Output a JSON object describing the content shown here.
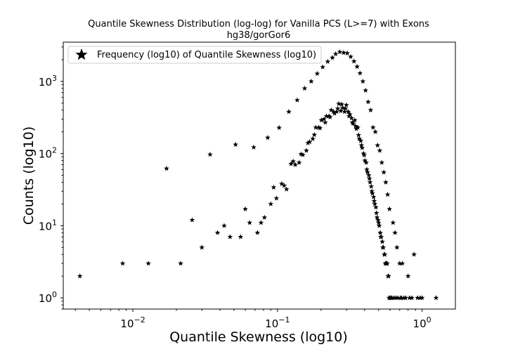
{
  "chart_data": {
    "type": "scatter",
    "title": "Quantile Skewness Distribution (log-log) for Vanilla PCS (L>=7) with Exons",
    "subtitle": "hg38/gorGor6",
    "xlabel": "Quantile Skewness (log10)",
    "ylabel": "Counts (log10)",
    "xscale": "log",
    "yscale": "log",
    "xlim": [
      0.0033,
      1.7
    ],
    "ylim": [
      0.7,
      3500
    ],
    "xticks": [
      {
        "value": 0.01,
        "base": "10",
        "exp": "−2"
      },
      {
        "value": 0.1,
        "base": "10",
        "exp": "−1"
      },
      {
        "value": 1,
        "base": "10",
        "exp": "0"
      }
    ],
    "yticks": [
      {
        "value": 1,
        "base": "10",
        "exp": "0"
      },
      {
        "value": 10,
        "base": "10",
        "exp": "1"
      },
      {
        "value": 100,
        "base": "10",
        "exp": "2"
      },
      {
        "value": 1000,
        "base": "10",
        "exp": "3"
      }
    ],
    "grid": false,
    "legend_position": "top-left",
    "marker": "star",
    "color": "#000000",
    "series": [
      {
        "name": "Frequency (log10) of Quantile Skewness (log10)",
        "points": [
          [
            0.0043,
            2
          ],
          [
            0.0085,
            3
          ],
          [
            0.0128,
            3
          ],
          [
            0.0171,
            62
          ],
          [
            0.0214,
            3
          ],
          [
            0.0257,
            12
          ],
          [
            0.03,
            5
          ],
          [
            0.0342,
            97
          ],
          [
            0.0385,
            8
          ],
          [
            0.0428,
            10
          ],
          [
            0.047,
            7
          ],
          [
            0.0513,
            133
          ],
          [
            0.0556,
            7
          ],
          [
            0.0599,
            17
          ],
          [
            0.0642,
            11
          ],
          [
            0.0685,
            122
          ],
          [
            0.0727,
            8
          ],
          [
            0.077,
            11
          ],
          [
            0.0813,
            13
          ],
          [
            0.0856,
            166
          ],
          [
            0.0899,
            20
          ],
          [
            0.0941,
            34
          ],
          [
            0.0984,
            24
          ],
          [
            0.1027,
            228
          ],
          [
            0.107,
            38
          ],
          [
            0.1113,
            36
          ],
          [
            0.1155,
            32
          ],
          [
            0.1198,
            380
          ],
          [
            0.1241,
            72
          ],
          [
            0.1284,
            78
          ],
          [
            0.1327,
            70
          ],
          [
            0.1369,
            550
          ],
          [
            0.1412,
            75
          ],
          [
            0.1455,
            98
          ],
          [
            0.1498,
            96
          ],
          [
            0.1541,
            800
          ],
          [
            0.1584,
            110
          ],
          [
            0.1626,
            140
          ],
          [
            0.1669,
            145
          ],
          [
            0.1712,
            1000
          ],
          [
            0.1755,
            160
          ],
          [
            0.1798,
            182
          ],
          [
            0.184,
            230
          ],
          [
            0.1883,
            1280
          ],
          [
            0.1926,
            230
          ],
          [
            0.1969,
            225
          ],
          [
            0.2012,
            290
          ],
          [
            0.2054,
            1580
          ],
          [
            0.2097,
            300
          ],
          [
            0.214,
            270
          ],
          [
            0.2183,
            330
          ],
          [
            0.2226,
            1880
          ],
          [
            0.2268,
            330
          ],
          [
            0.2311,
            320
          ],
          [
            0.2354,
            400
          ],
          [
            0.2397,
            2130
          ],
          [
            0.244,
            380
          ],
          [
            0.2482,
            360
          ],
          [
            0.2525,
            2400
          ],
          [
            0.2568,
            380
          ],
          [
            0.2611,
            420
          ],
          [
            0.2654,
            490
          ],
          [
            0.2696,
            2560
          ],
          [
            0.2739,
            390
          ],
          [
            0.2782,
            480
          ],
          [
            0.2825,
            430
          ],
          [
            0.2868,
            2500
          ],
          [
            0.2911,
            380
          ],
          [
            0.2953,
            420
          ],
          [
            0.2996,
            470
          ],
          [
            0.3039,
            2460
          ],
          [
            0.3082,
            380
          ],
          [
            0.3125,
            330
          ],
          [
            0.3167,
            350
          ],
          [
            0.321,
            2200
          ],
          [
            0.3253,
            310
          ],
          [
            0.3296,
            270
          ],
          [
            0.3339,
            260
          ],
          [
            0.3381,
            1900
          ],
          [
            0.3424,
            290
          ],
          [
            0.3467,
            240
          ],
          [
            0.351,
            220
          ],
          [
            0.3553,
            1600
          ],
          [
            0.3595,
            230
          ],
          [
            0.3638,
            180
          ],
          [
            0.3681,
            160
          ],
          [
            0.3724,
            1300
          ],
          [
            0.3767,
            150
          ],
          [
            0.381,
            130
          ],
          [
            0.3852,
            120
          ],
          [
            0.3895,
            1000
          ],
          [
            0.3938,
            100
          ],
          [
            0.3981,
            95
          ],
          [
            0.4024,
            80
          ],
          [
            0.4066,
            750
          ],
          [
            0.4109,
            75
          ],
          [
            0.4152,
            60
          ],
          [
            0.4195,
            55
          ],
          [
            0.4238,
            520
          ],
          [
            0.428,
            50
          ],
          [
            0.4323,
            45
          ],
          [
            0.4366,
            40
          ],
          [
            0.4409,
            400
          ],
          [
            0.4452,
            35
          ],
          [
            0.4494,
            30
          ],
          [
            0.4537,
            28
          ],
          [
            0.458,
            230
          ],
          [
            0.4623,
            25
          ],
          [
            0.4666,
            22
          ],
          [
            0.4709,
            20
          ],
          [
            0.4751,
            200
          ],
          [
            0.4794,
            18
          ],
          [
            0.4837,
            15
          ],
          [
            0.488,
            13
          ],
          [
            0.4923,
            130
          ],
          [
            0.4965,
            12
          ],
          [
            0.5008,
            11
          ],
          [
            0.5051,
            10
          ],
          [
            0.5094,
            110
          ],
          [
            0.5137,
            8
          ],
          [
            0.5179,
            7
          ],
          [
            0.5222,
            7
          ],
          [
            0.5265,
            75
          ],
          [
            0.5308,
            6
          ],
          [
            0.5351,
            5
          ],
          [
            0.5393,
            5
          ],
          [
            0.5436,
            55
          ],
          [
            0.5479,
            4
          ],
          [
            0.5522,
            4
          ],
          [
            0.5565,
            3
          ],
          [
            0.5608,
            40
          ],
          [
            0.565,
            3
          ],
          [
            0.5693,
            3
          ],
          [
            0.5736,
            3
          ],
          [
            0.5779,
            27
          ],
          [
            0.5822,
            2
          ],
          [
            0.5864,
            2
          ],
          [
            0.5907,
            1
          ],
          [
            0.595,
            17
          ],
          [
            0.6,
            1
          ],
          [
            0.61,
            1
          ],
          [
            0.62,
            1
          ],
          [
            0.63,
            11
          ],
          [
            0.64,
            1
          ],
          [
            0.65,
            8
          ],
          [
            0.66,
            1
          ],
          [
            0.67,
            5
          ],
          [
            0.68,
            1
          ],
          [
            0.7,
            3
          ],
          [
            0.71,
            1
          ],
          [
            0.72,
            1
          ],
          [
            0.73,
            3
          ],
          [
            0.75,
            1
          ],
          [
            0.77,
            1
          ],
          [
            0.8,
            2
          ],
          [
            0.82,
            1
          ],
          [
            0.85,
            1
          ],
          [
            0.88,
            4
          ],
          [
            0.93,
            1
          ],
          [
            0.97,
            1
          ],
          [
            1.0,
            1
          ],
          [
            1.25,
            1
          ]
        ]
      }
    ]
  }
}
